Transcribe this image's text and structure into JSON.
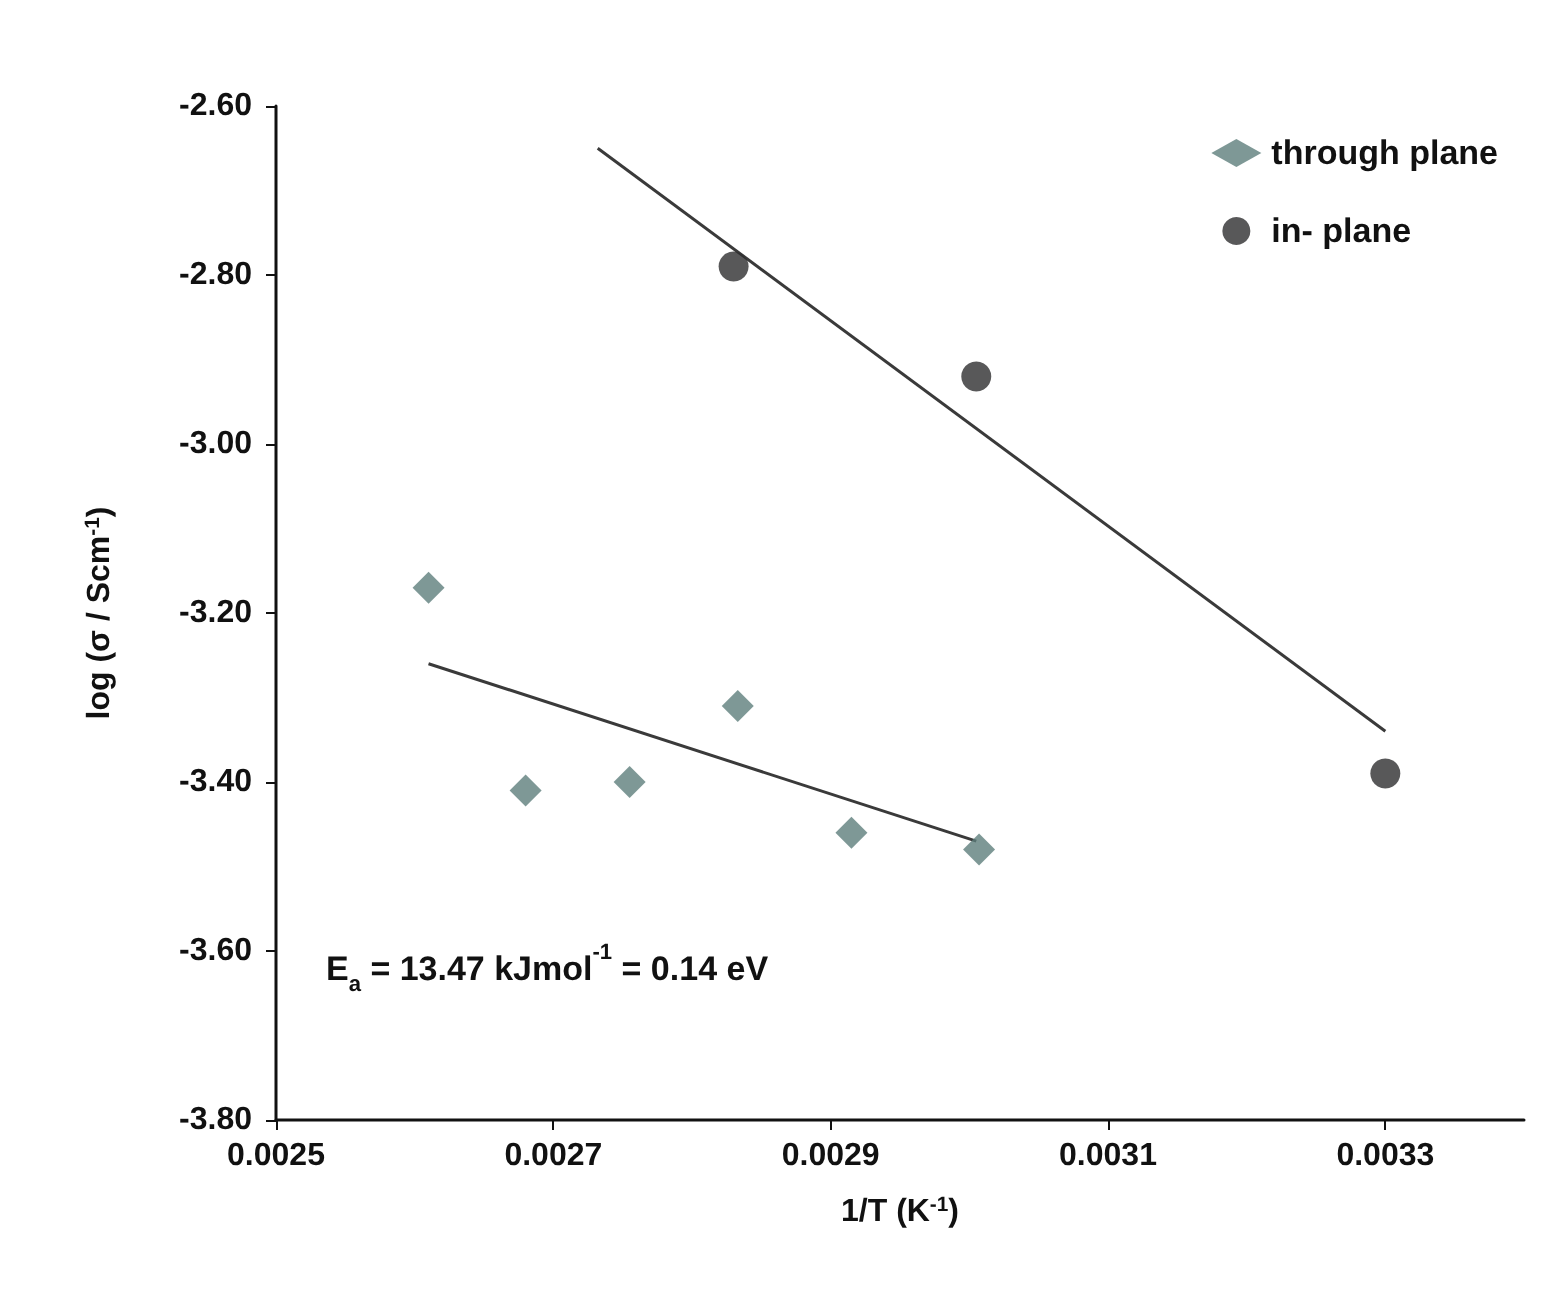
{
  "chart_data": {
    "type": "scatter",
    "xlabel": "1/T (K$^{-1}$)",
    "ylabel": "log (σ / Scm$^{-1}$)",
    "xlim": [
      0.0025,
      0.0034
    ],
    "ylim": [
      -3.8,
      -2.6
    ],
    "xticks": [
      {
        "value": 0.0025,
        "label": "0.0025"
      },
      {
        "value": 0.0027,
        "label": "0.0027"
      },
      {
        "value": 0.0029,
        "label": "0.0029"
      },
      {
        "value": 0.0031,
        "label": "0.0031"
      },
      {
        "value": 0.0033,
        "label": "0.0033"
      }
    ],
    "yticks": [
      {
        "value": -3.8,
        "label": "-3.80"
      },
      {
        "value": -3.6,
        "label": "-3.60"
      },
      {
        "value": -3.4,
        "label": "-3.40"
      },
      {
        "value": -3.2,
        "label": "-3.20"
      },
      {
        "value": -3.0,
        "label": "-3.00"
      },
      {
        "value": -2.8,
        "label": "-2.80"
      },
      {
        "value": -2.6,
        "label": "-2.60"
      }
    ],
    "series": [
      {
        "name": "through plane",
        "color": "#5e7e7c",
        "marker": "diamond",
        "x": [
          0.00261,
          0.00268,
          0.002755,
          0.002833,
          0.002915,
          0.003007
        ],
        "values": [
          -3.17,
          -3.41,
          -3.4,
          -3.31,
          -3.46,
          -3.48
        ]
      },
      {
        "name": "in- plane",
        "color": "#2e2e30",
        "marker": "circle",
        "x": [
          0.00283,
          0.003005,
          0.0033
        ],
        "values": [
          -2.79,
          -2.92,
          -3.39
        ]
      },
      {
        "type": "line",
        "color": "#3a3a3a",
        "marker": "none",
        "x": [
          0.00261,
          0.003005
        ],
        "values": [
          -3.26,
          -3.47
        ]
      },
      {
        "type": "line",
        "color": "#3a3a3a",
        "marker": "none",
        "x": [
          0.002732,
          0.0033
        ],
        "values": [
          -2.65,
          -3.34
        ]
      }
    ],
    "annotations": [
      "E$_{a}$ = 13.47 kJmol$^{-1}$ = 0.14 eV"
    ],
    "legend": "top right",
    "grid": false
  }
}
